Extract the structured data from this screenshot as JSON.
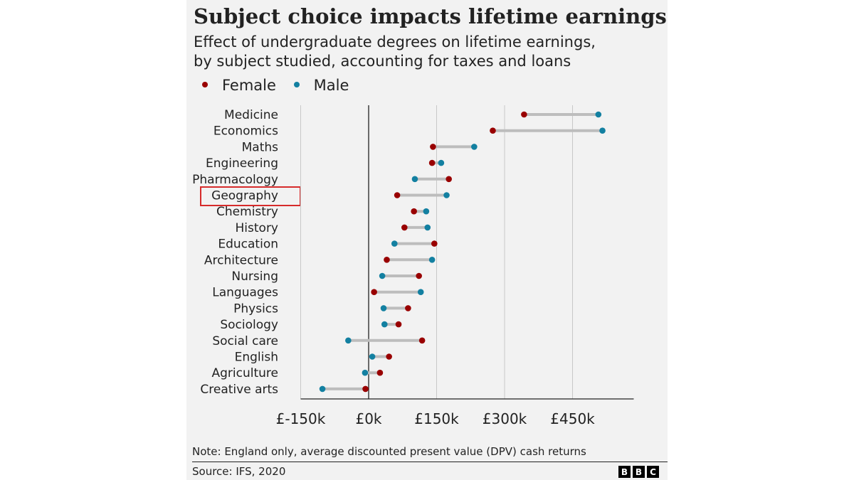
{
  "chart_data": {
    "type": "dumbbell",
    "title": "Subject choice impacts lifetime earnings",
    "subtitle_line1": "Effect of undergraduate degrees on lifetime earnings,",
    "subtitle_line2": "by subject studied, accounting for taxes and loans",
    "legend": [
      {
        "name": "Female",
        "color": "#990000"
      },
      {
        "name": "Male",
        "color": "#1380a1"
      }
    ],
    "highlighted_category": "Geography",
    "x_ticks": [
      {
        "value": -150,
        "label": "£-150k"
      },
      {
        "value": 0,
        "label": "£0k"
      },
      {
        "value": 150,
        "label": "£150k"
      },
      {
        "value": 300,
        "label": "£300k"
      },
      {
        "value": 450,
        "label": "£450k"
      }
    ],
    "xlim": [
      -150,
      585
    ],
    "unit": "£k",
    "categories": [
      "Medicine",
      "Economics",
      "Maths",
      "Engineering",
      "Pharmacology",
      "Geography",
      "Chemistry",
      "History",
      "Education",
      "Architecture",
      "Nursing",
      "Languages",
      "Physics",
      "Sociology",
      "Social care",
      "English",
      "Agriculture",
      "Creative arts"
    ],
    "series": [
      {
        "name": "Female",
        "values": [
          343,
          274,
          142,
          140,
          177,
          63,
          100,
          79,
          145,
          40,
          111,
          12,
          87,
          66,
          118,
          45,
          25,
          -7
        ]
      },
      {
        "name": "Male",
        "values": [
          507,
          516,
          233,
          160,
          102,
          172,
          127,
          130,
          57,
          140,
          30,
          115,
          33,
          35,
          -45,
          8,
          -8,
          -102
        ]
      }
    ]
  },
  "footer": {
    "note": "Note: England only, average discounted present value (DPV) cash returns",
    "source": "Source: IFS, 2020",
    "logo": [
      "B",
      "B",
      "C"
    ]
  }
}
